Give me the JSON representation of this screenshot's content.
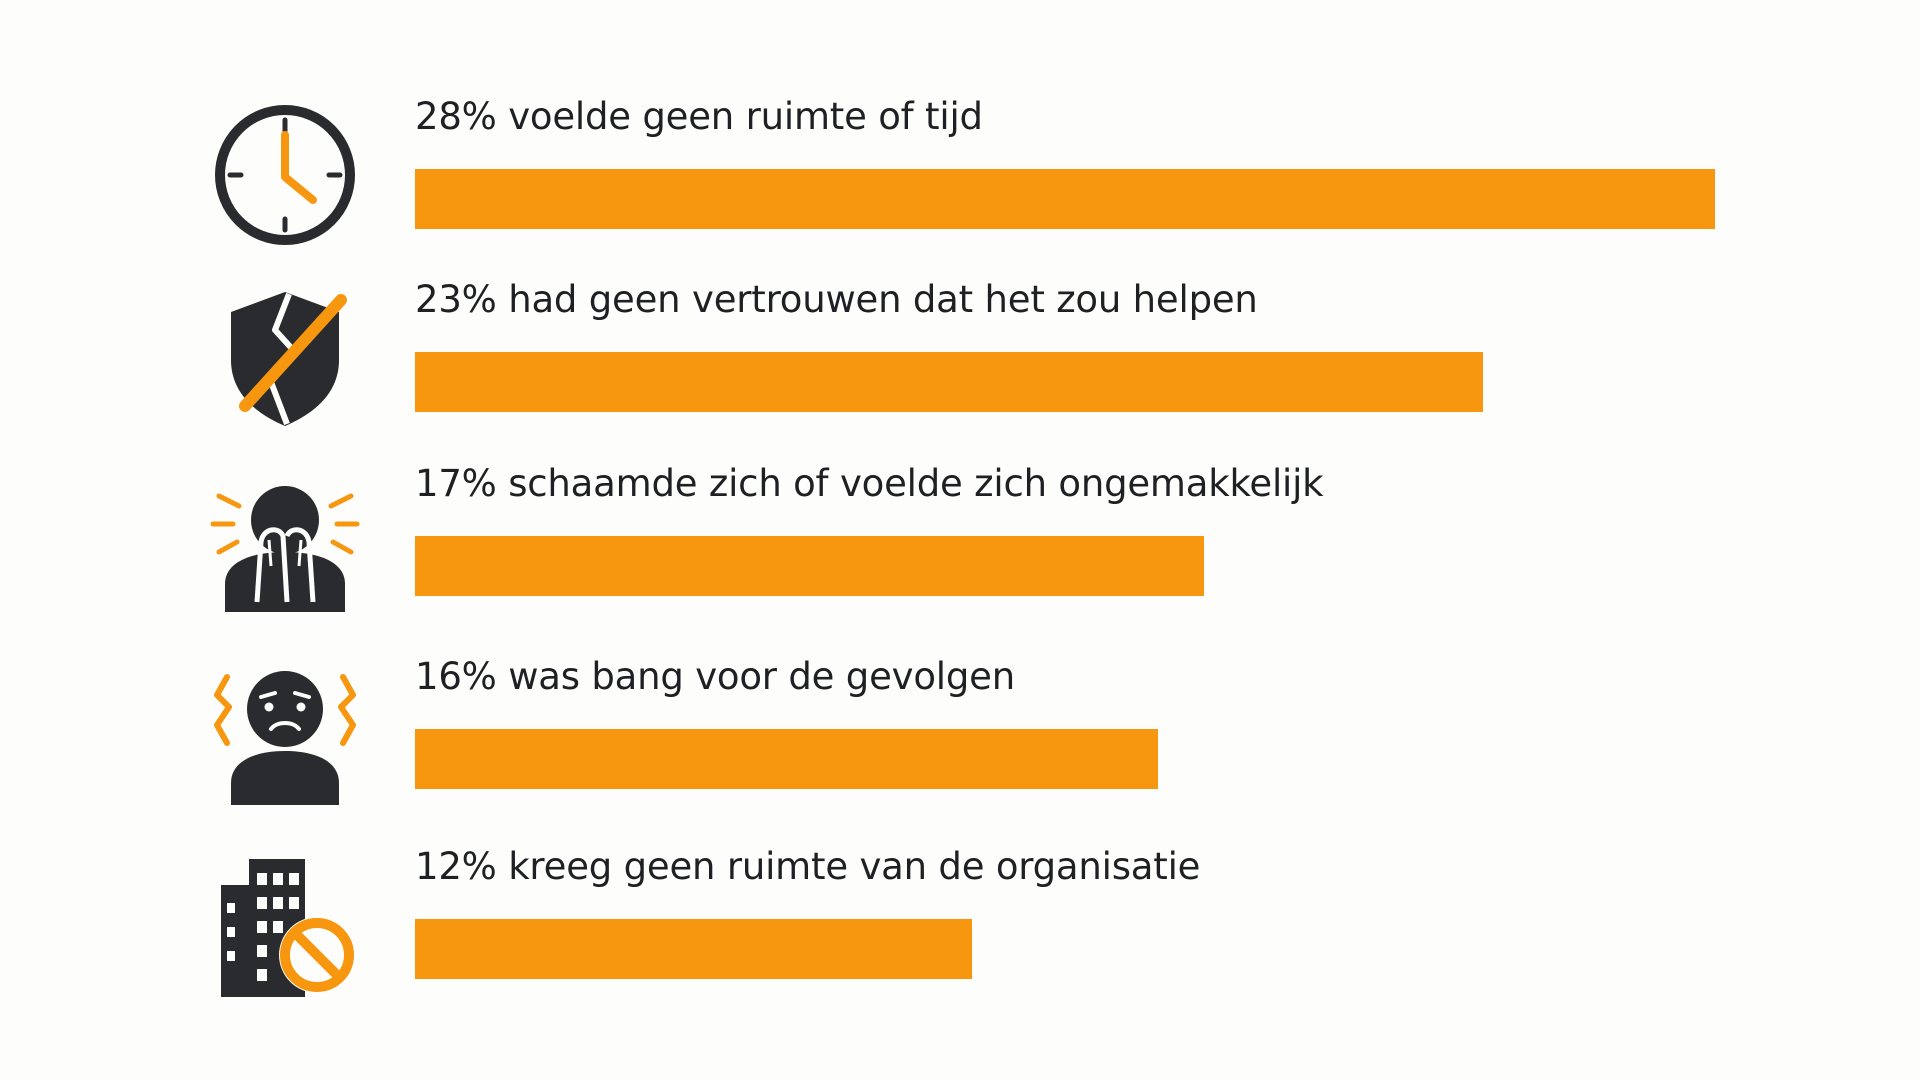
{
  "colors": {
    "bar": "#f7960f",
    "icon_dark": "#2a2b2e",
    "text": "#1f2023",
    "background": "#fdfdfb"
  },
  "chart_data": {
    "type": "bar",
    "orientation": "horizontal",
    "categories": [
      "voelde geen ruimte of tijd",
      "had geen vertrouwen dat het zou helpen",
      "schaamde zich of voelde zich ongemakkelijk",
      "was bang voor de gevolgen",
      "kreeg geen ruimte van de organisatie"
    ],
    "values": [
      28,
      23,
      17,
      16,
      12
    ],
    "unit": "%",
    "xlim": [
      0,
      28
    ],
    "grid": false,
    "legend": "none"
  },
  "rows": [
    {
      "label": "28% voelde geen ruimte of tijd",
      "value": 28,
      "icon": "clock-icon"
    },
    {
      "label": "23% had geen vertrouwen dat het zou helpen",
      "value": 23,
      "icon": "broken-shield-icon"
    },
    {
      "label": "17% schaamde zich of voelde zich ongemakkelijk",
      "value": 17,
      "icon": "ashamed-person-icon"
    },
    {
      "label": "16% was bang voor de gevolgen",
      "value": 16,
      "icon": "worried-person-icon"
    },
    {
      "label": "12% kreeg geen ruimte van de organisatie",
      "value": 12,
      "icon": "building-prohibited-icon"
    }
  ]
}
